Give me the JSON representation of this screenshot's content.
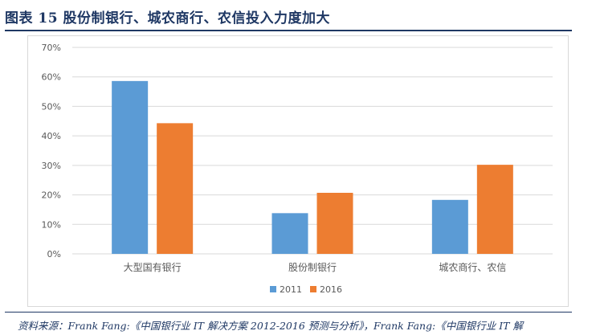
{
  "figure": {
    "title": "图表 15    股份制银行、城农商行、农信投入力度加大",
    "source": "资料来源：Frank Fang:《中国银行业 IT 解决方案 2012-2016 预测与分析》，Frank Fang:《中国银行业 IT 解"
  },
  "colors": {
    "series_2011": "#5b9bd5",
    "series_2016": "#ed7d31",
    "grid": "#d9d9d9",
    "axis_text": "#595959",
    "title": "#1f3864"
  },
  "chart_data": {
    "type": "bar",
    "categories": [
      "大型国有银行",
      "股份制银行",
      "城农商行、农信"
    ],
    "series": [
      {
        "name": "2011",
        "values": [
          58.6,
          13.8,
          18.3
        ]
      },
      {
        "name": "2016",
        "values": [
          44.3,
          20.7,
          30.2
        ]
      }
    ],
    "ylim": [
      0,
      70
    ],
    "yticks": [
      0,
      10,
      20,
      30,
      40,
      50,
      60,
      70
    ],
    "ytick_labels": [
      "0%",
      "10%",
      "20%",
      "30%",
      "40%",
      "50%",
      "60%",
      "70%"
    ],
    "grid": true,
    "legend": "bottom-center"
  }
}
